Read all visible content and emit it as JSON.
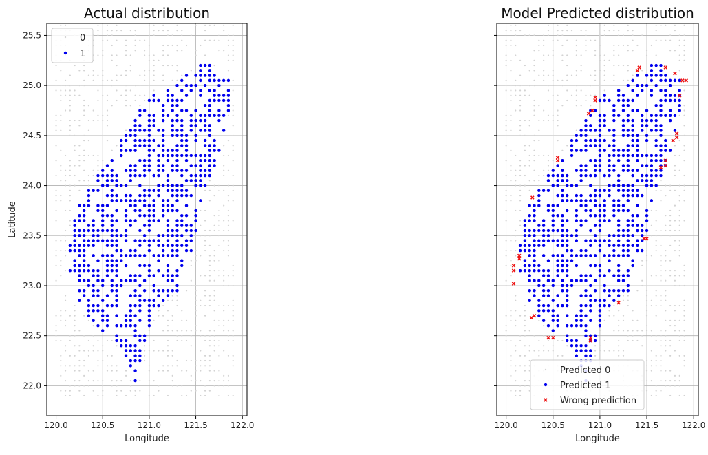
{
  "chart_data": [
    {
      "type": "scatter",
      "title": "Actual distribution",
      "xlabel": "Longitude",
      "ylabel": "Latitude",
      "xlim": [
        119.9,
        122.05
      ],
      "ylim": [
        21.7,
        25.62
      ],
      "xticks": [
        "120.0",
        "120.5",
        "121.0",
        "121.5",
        "122.0"
      ],
      "yticks": [
        "22.0",
        "22.5",
        "23.0",
        "23.5",
        "24.0",
        "24.5",
        "25.0",
        "25.5"
      ],
      "grid": true,
      "legend_position": "upper-left",
      "series": [
        {
          "name": "0",
          "color": "#d3d3d3",
          "marker": "small-dot",
          "values": "grid points 120.0-121.9 lon, 21.9-25.6 lat, step 0.05, outside the island"
        },
        {
          "name": "1",
          "color": "#0000ee",
          "marker": "dot",
          "values": "grid points inside the island polygon"
        }
      ],
      "island_outline": [
        [
          121.58,
          25.27
        ],
        [
          121.85,
          25.08
        ],
        [
          121.87,
          24.88
        ],
        [
          121.83,
          24.55
        ],
        [
          121.75,
          24.25
        ],
        [
          121.6,
          24.0
        ],
        [
          121.52,
          23.62
        ],
        [
          121.45,
          23.3
        ],
        [
          121.3,
          22.95
        ],
        [
          121.08,
          22.75
        ],
        [
          120.95,
          22.45
        ],
        [
          120.88,
          21.96
        ],
        [
          120.8,
          22.12
        ],
        [
          120.72,
          22.35
        ],
        [
          120.62,
          22.45
        ],
        [
          120.55,
          22.5
        ],
        [
          120.38,
          22.65
        ],
        [
          120.28,
          22.8
        ],
        [
          120.18,
          22.95
        ],
        [
          120.1,
          23.12
        ],
        [
          120.12,
          23.35
        ],
        [
          120.15,
          23.55
        ],
        [
          120.22,
          23.78
        ],
        [
          120.35,
          23.96
        ],
        [
          120.48,
          24.15
        ],
        [
          120.6,
          24.32
        ],
        [
          120.72,
          24.5
        ],
        [
          120.85,
          24.7
        ],
        [
          120.98,
          24.85
        ],
        [
          121.12,
          24.97
        ],
        [
          121.3,
          25.05
        ],
        [
          121.45,
          25.15
        ]
      ],
      "x_samples": [
        120.1,
        120.5,
        121.0,
        121.5,
        121.85
      ],
      "y_samples": [
        23.2,
        22.65,
        22.3,
        24.0,
        25.05
      ]
    },
    {
      "type": "scatter",
      "title": "Model Predicted distribution",
      "xlabel": "Longitude",
      "ylabel": "",
      "xlim": [
        119.9,
        122.05
      ],
      "ylim": [
        21.7,
        25.62
      ],
      "xticks": [
        "120.0",
        "120.5",
        "121.0",
        "121.5",
        "122.0"
      ],
      "grid": true,
      "legend_position": "lower-center",
      "series": [
        {
          "name": "Predicted 0",
          "color": "#d3d3d3",
          "marker": "small-dot"
        },
        {
          "name": "Predicted 1",
          "color": "#0000ee",
          "marker": "dot"
        },
        {
          "name": "Wrong prediction",
          "color": "#ee1111",
          "marker": "x",
          "points": [
            [
              120.08,
              23.2
            ],
            [
              120.08,
              23.15
            ],
            [
              120.14,
              23.3
            ],
            [
              120.14,
              23.27
            ],
            [
              120.08,
              23.02
            ],
            [
              120.28,
              23.88
            ],
            [
              120.3,
              22.7
            ],
            [
              120.27,
              22.68
            ],
            [
              120.5,
              22.48
            ],
            [
              120.45,
              22.48
            ],
            [
              120.9,
              22.48
            ],
            [
              120.9,
              22.45
            ],
            [
              120.55,
              24.25
            ],
            [
              120.55,
              24.28
            ],
            [
              120.88,
              24.72
            ],
            [
              120.92,
              24.75
            ],
            [
              120.95,
              24.88
            ],
            [
              120.95,
              24.85
            ],
            [
              121.4,
              25.15
            ],
            [
              121.42,
              25.18
            ],
            [
              121.5,
              23.47
            ],
            [
              121.47,
              23.47
            ],
            [
              121.2,
              22.83
            ],
            [
              121.65,
              24.18
            ],
            [
              121.7,
              24.2
            ],
            [
              121.7,
              24.25
            ],
            [
              121.78,
              24.45
            ],
            [
              121.82,
              24.48
            ],
            [
              121.82,
              24.52
            ],
            [
              121.7,
              25.18
            ],
            [
              121.8,
              25.12
            ],
            [
              121.85,
              24.9
            ],
            [
              121.88,
              25.05
            ],
            [
              121.92,
              25.05
            ]
          ]
        }
      ]
    }
  ]
}
